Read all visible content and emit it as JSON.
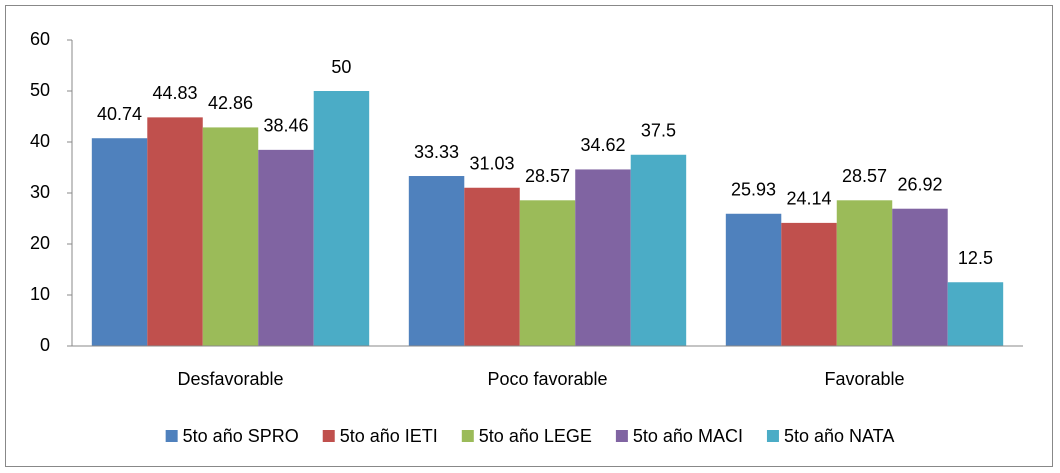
{
  "chart_data": {
    "type": "bar",
    "categories": [
      "Desfavorable",
      "Poco favorable",
      "Favorable"
    ],
    "series": [
      {
        "name": "5to año SPRO",
        "color": "#4f81bd",
        "values": [
          40.74,
          33.33,
          25.93
        ]
      },
      {
        "name": "5to año IETI",
        "color": "#c0504d",
        "values": [
          44.83,
          31.03,
          24.14
        ]
      },
      {
        "name": "5to año LEGE",
        "color": "#9bbb59",
        "values": [
          42.86,
          28.57,
          28.57
        ]
      },
      {
        "name": "5to año MACI",
        "color": "#8064a2",
        "values": [
          38.46,
          34.62,
          26.92
        ]
      },
      {
        "name": "5to año NATA",
        "color": "#4bacc6",
        "values": [
          50,
          37.5,
          12.5
        ]
      }
    ],
    "ylim": [
      0,
      60
    ],
    "yticks": [
      0,
      10,
      20,
      30,
      40,
      50,
      60
    ],
    "legend": "bottom"
  }
}
